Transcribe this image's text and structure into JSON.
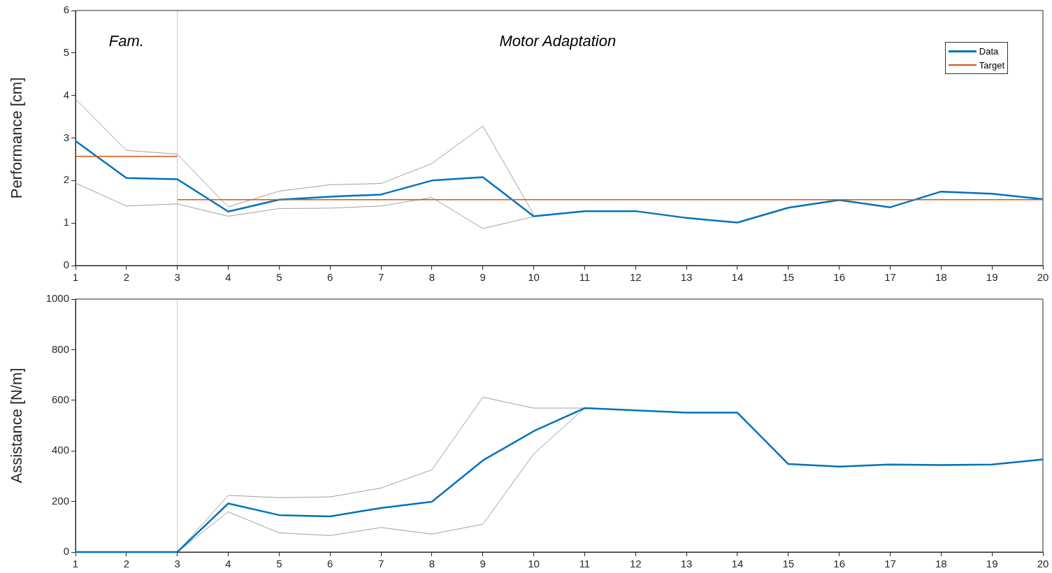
{
  "chart_data": [
    {
      "type": "line",
      "ylabel": "Performance [cm]",
      "x": [
        1,
        2,
        3,
        4,
        5,
        6,
        7,
        8,
        9,
        10,
        11,
        12,
        13,
        14,
        15,
        16,
        17,
        18,
        19,
        20
      ],
      "xlim": [
        1,
        20
      ],
      "xticks": [
        1,
        2,
        3,
        4,
        5,
        6,
        7,
        8,
        9,
        10,
        11,
        12,
        13,
        14,
        15,
        16,
        17,
        18,
        19,
        20
      ],
      "ylim": [
        0,
        6
      ],
      "yticks": [
        0,
        1,
        2,
        3,
        4,
        5,
        6
      ],
      "grid": false,
      "legend": "top right",
      "marker": "none",
      "line_style": "solid",
      "series": [
        {
          "color": "#a0a0a0",
          "values": [
            3.92,
            2.71,
            2.62,
            1.38,
            1.75,
            1.9,
            1.93,
            2.4,
            3.28,
            1.2,
            null,
            null,
            null,
            null,
            null,
            null,
            null,
            null,
            null,
            null
          ]
        },
        {
          "color": "#a0a0a0",
          "values": [
            1.94,
            1.4,
            1.45,
            1.16,
            1.34,
            1.35,
            1.4,
            1.6,
            0.87,
            1.15,
            null,
            null,
            null,
            null,
            null,
            null,
            null,
            null,
            null,
            null
          ]
        },
        {
          "name": "Data",
          "color": "#0072bd",
          "values": [
            2.93,
            2.06,
            2.03,
            1.27,
            1.55,
            1.62,
            1.67,
            2.0,
            2.08,
            1.16,
            1.28,
            1.28,
            1.12,
            1.01,
            1.36,
            1.54,
            1.37,
            1.74,
            1.69,
            1.56
          ]
        },
        {
          "name": "Target",
          "color": "#d95319",
          "x": [
            1,
            3,
            3,
            20
          ],
          "values": [
            2.57,
            2.57,
            1.55,
            1.55
          ]
        }
      ],
      "ref_lines": [
        {
          "axis": "x",
          "value": 3,
          "color": "#c8c8c8"
        }
      ],
      "annotations": [
        "Fam.",
        "Motor Adaptation"
      ]
    },
    {
      "type": "line",
      "ylabel": "Assistance [N/m]",
      "x": [
        1,
        2,
        3,
        4,
        5,
        6,
        7,
        8,
        9,
        10,
        11,
        12,
        13,
        14,
        15,
        16,
        17,
        18,
        19,
        20
      ],
      "xlim": [
        1,
        20
      ],
      "xticks": [
        1,
        2,
        3,
        4,
        5,
        6,
        7,
        8,
        9,
        10,
        11,
        12,
        13,
        14,
        15,
        16,
        17,
        18,
        19,
        20
      ],
      "ylim": [
        0,
        1000
      ],
      "yticks": [
        0,
        200,
        400,
        600,
        800,
        1000
      ],
      "grid": false,
      "marker": "none",
      "line_style": "solid",
      "series": [
        {
          "color": "#a0a0a0",
          "values": [
            null,
            null,
            0,
            224,
            215,
            218,
            253,
            325,
            612,
            569,
            569,
            null,
            null,
            null,
            null,
            null,
            null,
            null,
            null,
            null
          ]
        },
        {
          "color": "#a0a0a0",
          "values": [
            null,
            null,
            0,
            159,
            76,
            65,
            97,
            71,
            110,
            388,
            569,
            null,
            null,
            null,
            null,
            null,
            null,
            null,
            null,
            null
          ]
        },
        {
          "color": "#0072bd",
          "values": [
            0,
            0,
            0,
            192,
            146,
            141,
            174,
            199,
            362,
            478,
            569,
            560,
            551,
            551,
            348,
            338,
            346,
            344,
            346,
            366
          ]
        }
      ],
      "ref_lines": [
        {
          "axis": "x",
          "value": 3,
          "color": "#c8c8c8"
        }
      ]
    }
  ]
}
